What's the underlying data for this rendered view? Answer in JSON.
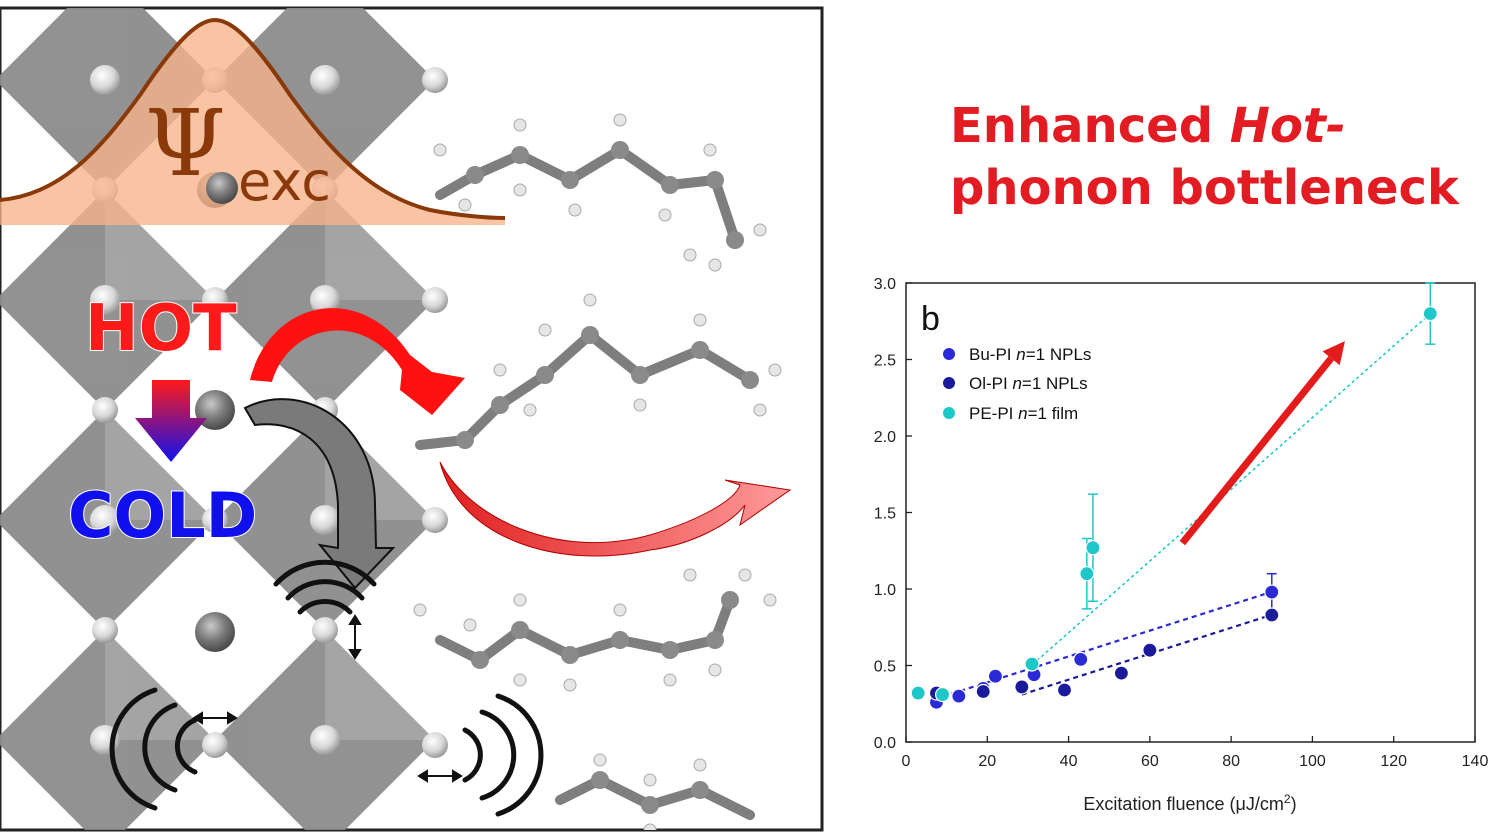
{
  "headline": {
    "line1_prefix": "Enhanced ",
    "line1_italic": "Hot-",
    "line2": "phonon bottleneck"
  },
  "illustration": {
    "psi_symbol": "Ψ",
    "psi_subscript": "exc",
    "hot_label": "HOT",
    "cold_label": "COLD",
    "colors": {
      "hot": "#ff1a1a",
      "cold": "#1010ee",
      "gaussian_fill": "#f7b48a",
      "gaussian_line": "#8a3a0a",
      "octahedron": "#8c8c8c"
    }
  },
  "chart_data": {
    "type": "scatter",
    "panel_label": "b",
    "xlabel": "Excitation fluence (μJ/cm",
    "xlabel_sup": "2",
    "xlabel_close": ")",
    "ylabel": "",
    "xlim": [
      0,
      140
    ],
    "ylim": [
      0.0,
      3.0
    ],
    "x_ticks": [
      "0",
      "20",
      "40",
      "60",
      "80",
      "100",
      "120",
      "140"
    ],
    "y_ticks": [
      "0.0",
      "0.5",
      "1.0",
      "1.5",
      "2.0",
      "2.5",
      "3.0"
    ],
    "legend_position": "top-left",
    "series": [
      {
        "name_pre": "Bu-PI ",
        "name_italic": "n",
        "name_post": "=1 NPLs",
        "color": "#2a2ad6",
        "x": [
          7.5,
          13,
          19,
          22,
          31.5,
          43,
          90
        ],
        "y": [
          0.26,
          0.3,
          0.35,
          0.43,
          0.44,
          0.54,
          0.98
        ],
        "err": [
          0,
          0,
          0,
          0,
          0,
          0,
          0.12
        ],
        "fit": [
          [
            7,
            0.28
          ],
          [
            91,
            0.99
          ]
        ]
      },
      {
        "name_pre": "Ol-PI ",
        "name_italic": "n",
        "name_post": "=1 NPLs",
        "color": "#1a1a9a",
        "x": [
          7.5,
          19,
          28.5,
          39,
          53,
          60,
          90
        ],
        "y": [
          0.32,
          0.33,
          0.36,
          0.34,
          0.45,
          0.6,
          0.83
        ],
        "err": [
          0,
          0,
          0,
          0,
          0,
          0,
          0
        ],
        "fit": [
          [
            28.5,
            0.31
          ],
          [
            91,
            0.84
          ]
        ]
      },
      {
        "name_pre": "PE-PI ",
        "name_italic": "n",
        "name_post": "=1 film",
        "color": "#1ec8c8",
        "x": [
          3,
          9,
          31,
          44.5,
          46,
          129
        ],
        "y": [
          0.32,
          0.31,
          0.51,
          1.1,
          1.27,
          2.8
        ],
        "err": [
          0,
          0,
          0,
          0.23,
          0.35,
          0.2
        ],
        "fit": [
          [
            30,
            0.48
          ],
          [
            129,
            2.8
          ]
        ]
      }
    ],
    "trend_arrow": {
      "from": [
        68,
        1.3
      ],
      "to": [
        108,
        2.62
      ],
      "color": "#e31b1b"
    }
  }
}
